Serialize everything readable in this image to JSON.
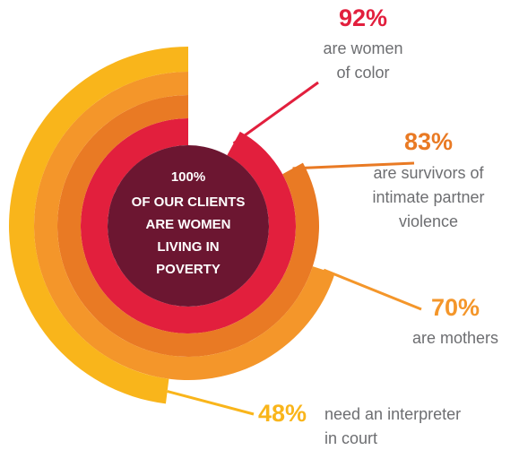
{
  "chart_data": {
    "type": "radial_bar",
    "center": {
      "value": 100,
      "value_label": "100%",
      "lines": [
        "OF OUR CLIENTS",
        "ARE WOMEN",
        "LIVING IN",
        "POVERTY"
      ]
    },
    "series": [
      {
        "name": "are women of color",
        "lines": [
          "are women",
          "of color"
        ],
        "value": 92,
        "value_label": "92%",
        "color": "#e21f3d"
      },
      {
        "name": "are survivors of intimate partner violence",
        "lines": [
          "are survivors of",
          "intimate partner",
          "violence"
        ],
        "value": 83,
        "value_label": "83%",
        "color": "#e97a24"
      },
      {
        "name": "are mothers",
        "lines": [
          "are mothers"
        ],
        "value": 70,
        "value_label": "70%",
        "color": "#f4962a"
      },
      {
        "name": "need an interpreter in court",
        "lines": [
          "need an interpreter",
          "in court"
        ],
        "value": 48,
        "value_label": "48%",
        "color": "#f9b51b"
      }
    ],
    "center_color": "#6c1631",
    "vlim": [
      0,
      100
    ]
  }
}
